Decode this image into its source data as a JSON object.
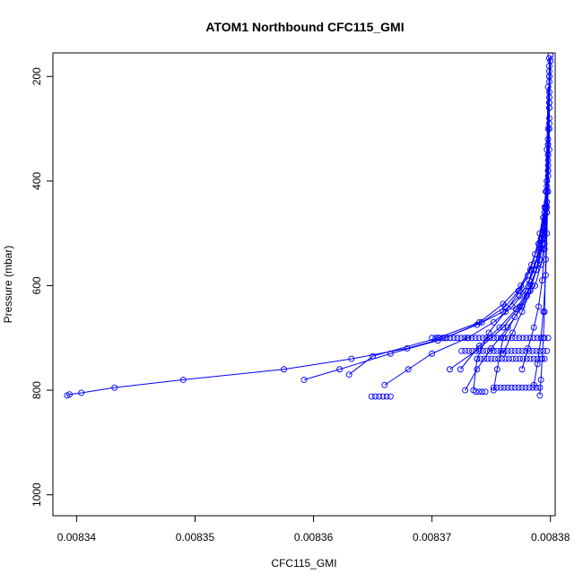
{
  "chart_data": {
    "type": "scatter",
    "title": "ATOM1 Northbound CFC115_GMI",
    "xlabel": "CFC115_GMI",
    "ylabel": "Pressure (mbar)",
    "xlim": [
      0.008338,
      0.0083804
    ],
    "ylim": [
      1040,
      155
    ],
    "y_reversed": true,
    "x_ticks": [
      0.00834,
      0.00835,
      0.00836,
      0.00837,
      0.00838
    ],
    "x_tick_labels": [
      "0.00834",
      "0.00835",
      "0.00836",
      "0.00837",
      "0.00838"
    ],
    "y_ticks": [
      200,
      400,
      600,
      800,
      1000
    ],
    "y_tick_labels": [
      "200",
      "400",
      "600",
      "800",
      "1000"
    ],
    "grid": false,
    "series_color": "#0000ff",
    "marker": "open-circle",
    "series": [
      {
        "x": [
          0.0083799,
          0.0083799,
          0.0083798,
          0.0083797,
          0.0083795,
          0.0083791,
          0.0083787,
          0.0083781,
          0.0083773,
          0.0083762,
          0.0083742,
          0.0083711,
          0.0083679,
          0.0083632,
          0.0083575,
          0.008349,
          0.0083432,
          0.0083404,
          0.0083394,
          0.0083392
        ],
        "y": [
          165,
          250,
          330,
          400,
          450,
          500,
          540,
          580,
          610,
          640,
          670,
          700,
          720,
          740,
          760,
          780,
          795,
          805,
          808,
          810
        ]
      },
      {
        "x": [
          0.0083799,
          0.0083798,
          0.0083797,
          0.0083795,
          0.0083792,
          0.0083788,
          0.0083782,
          0.0083774,
          0.008376,
          0.0083738,
          0.0083705,
          0.0083665,
          0.0083622,
          0.0083592
        ],
        "y": [
          180,
          300,
          400,
          460,
          510,
          550,
          590,
          620,
          650,
          675,
          705,
          730,
          760,
          780
        ]
      },
      {
        "x": [
          0.0083799,
          0.0083798,
          0.0083797,
          0.0083795,
          0.0083791,
          0.0083786,
          0.0083779,
          0.0083768,
          0.0083752,
          0.008373,
          0.00837,
          0.008368,
          0.008366
        ],
        "y": [
          200,
          320,
          420,
          480,
          530,
          570,
          610,
          640,
          670,
          700,
          730,
          760,
          790
        ]
      },
      {
        "x": [
          0.0083799,
          0.0083799,
          0.0083798,
          0.0083797,
          0.0083795,
          0.0083792,
          0.0083788,
          0.0083781,
          0.0083771,
          0.0083757,
          0.008374,
          0.0083724
        ],
        "y": [
          210,
          300,
          380,
          440,
          490,
          530,
          570,
          610,
          645,
          680,
          715,
          760
        ]
      },
      {
        "x": [
          0.0083798,
          0.0083797,
          0.0083796,
          0.0083794,
          0.008379,
          0.0083784,
          0.0083775,
          0.008376,
          0.008374,
          0.0083705,
          0.008365,
          0.008363
        ],
        "y": [
          220,
          340,
          420,
          470,
          520,
          560,
          600,
          635,
          670,
          700,
          735,
          770
        ]
      },
      {
        "x": [
          0.0083799,
          0.0083798,
          0.0083797,
          0.0083794,
          0.008379,
          0.0083783,
          0.0083774,
          0.0083762,
          0.0083748,
          0.0083738,
          0.0083735
        ],
        "y": [
          230,
          330,
          410,
          470,
          520,
          570,
          610,
          650,
          690,
          740,
          800
        ]
      },
      {
        "x": [
          0.0083799,
          0.0083798,
          0.0083796,
          0.0083793,
          0.0083788,
          0.008378,
          0.008377,
          0.008376,
          0.0083755,
          0.0083752
        ],
        "y": [
          200,
          350,
          450,
          520,
          570,
          620,
          660,
          700,
          760,
          800
        ]
      },
      {
        "x": [
          0.00838,
          0.0083799,
          0.0083798,
          0.0083797,
          0.0083796,
          0.0083795,
          0.0083794,
          0.0083793,
          0.0083792,
          0.0083791
        ],
        "y": [
          160,
          250,
          350,
          450,
          550,
          650,
          700,
          740,
          780,
          810
        ]
      },
      {
        "x": [
          0.0083799,
          0.0083799,
          0.0083798,
          0.0083797,
          0.0083795,
          0.0083792,
          0.0083787,
          0.0083776,
          0.0083764,
          0.008375,
          0.0083738,
          0.0083728
        ],
        "y": [
          190,
          290,
          390,
          460,
          520,
          560,
          600,
          640,
          680,
          720,
          760,
          800
        ]
      },
      {
        "x": [
          0.00838,
          0.0083799,
          0.0083799,
          0.0083798,
          0.0083797,
          0.0083796,
          0.0083794,
          0.0083792,
          0.0083789,
          0.0083786
        ],
        "y": [
          170,
          260,
          340,
          420,
          500,
          580,
          650,
          700,
          750,
          790
        ]
      },
      {
        "x": [
          0.0083799,
          0.0083798,
          0.0083797,
          0.0083795,
          0.0083791,
          0.0083784,
          0.0083774,
          0.008376,
          0.008374,
          0.0083715
        ],
        "y": [
          240,
          360,
          440,
          500,
          550,
          600,
          640,
          680,
          720,
          760
        ]
      },
      {
        "x": [
          0.0083799,
          0.0083798,
          0.0083796,
          0.0083793,
          0.0083789,
          0.0083783,
          0.0083776,
          0.0083768,
          0.008376
        ],
        "y": [
          260,
          370,
          450,
          510,
          560,
          610,
          650,
          690,
          730
        ]
      },
      {
        "x": [
          0.0083799,
          0.0083798,
          0.0083797,
          0.0083795,
          0.0083793,
          0.008379,
          0.0083786,
          0.0083781,
          0.0083776
        ],
        "y": [
          280,
          380,
          460,
          530,
          590,
          640,
          680,
          720,
          760
        ]
      }
    ],
    "horizontal_bands": [
      {
        "y": 700,
        "x": [
          0.00837,
          0.0083798
        ]
      },
      {
        "y": 725,
        "x": [
          0.0083725,
          0.0083797
        ]
      },
      {
        "y": 740,
        "x": [
          0.0083738,
          0.0083795
        ]
      },
      {
        "y": 795,
        "x": [
          0.0083752,
          0.0083791
        ]
      },
      {
        "y": 803,
        "x": [
          0.0083737,
          0.0083745
        ]
      },
      {
        "y": 812,
        "x": [
          0.0083649,
          0.0083665
        ]
      }
    ]
  }
}
